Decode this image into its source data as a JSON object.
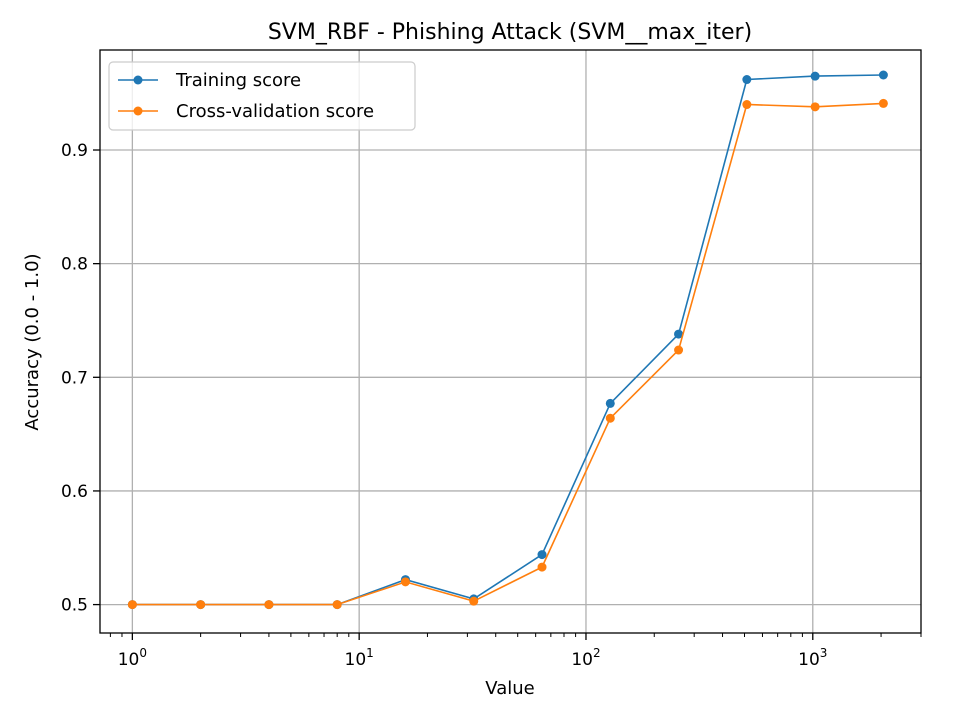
{
  "chart_data": {
    "type": "line",
    "title": "SVM_RBF - Phishing Attack (SVM__max_iter)",
    "xlabel": "Value",
    "ylabel": "Accuracy (0.0 - 1.0)",
    "xscale": "log",
    "xlim": [
      0.72,
      3000
    ],
    "ylim": [
      0.475,
      0.988
    ],
    "grid": true,
    "legend_position": "top-left",
    "x": [
      1,
      2,
      4,
      8,
      16,
      32,
      64,
      128,
      256,
      512,
      1024,
      2048
    ],
    "x_ticks": [
      {
        "value": 1,
        "base": "10",
        "exp": "0"
      },
      {
        "value": 10,
        "base": "10",
        "exp": "1"
      },
      {
        "value": 100,
        "base": "10",
        "exp": "2"
      },
      {
        "value": 1000,
        "base": "10",
        "exp": "3"
      }
    ],
    "y_ticks": [
      {
        "value": 0.5,
        "label": "0.5"
      },
      {
        "value": 0.6,
        "label": "0.6"
      },
      {
        "value": 0.7,
        "label": "0.7"
      },
      {
        "value": 0.8,
        "label": "0.8"
      },
      {
        "value": 0.9,
        "label": "0.9"
      }
    ],
    "series": [
      {
        "name": "Training score",
        "color": "#1f77b4",
        "values": [
          0.5,
          0.5,
          0.5,
          0.5,
          0.522,
          0.505,
          0.544,
          0.677,
          0.738,
          0.962,
          0.965,
          0.966
        ]
      },
      {
        "name": "Cross-validation score",
        "color": "#ff7f0e",
        "values": [
          0.5,
          0.5,
          0.5,
          0.5,
          0.52,
          0.503,
          0.533,
          0.664,
          0.724,
          0.94,
          0.938,
          0.941
        ]
      }
    ]
  }
}
